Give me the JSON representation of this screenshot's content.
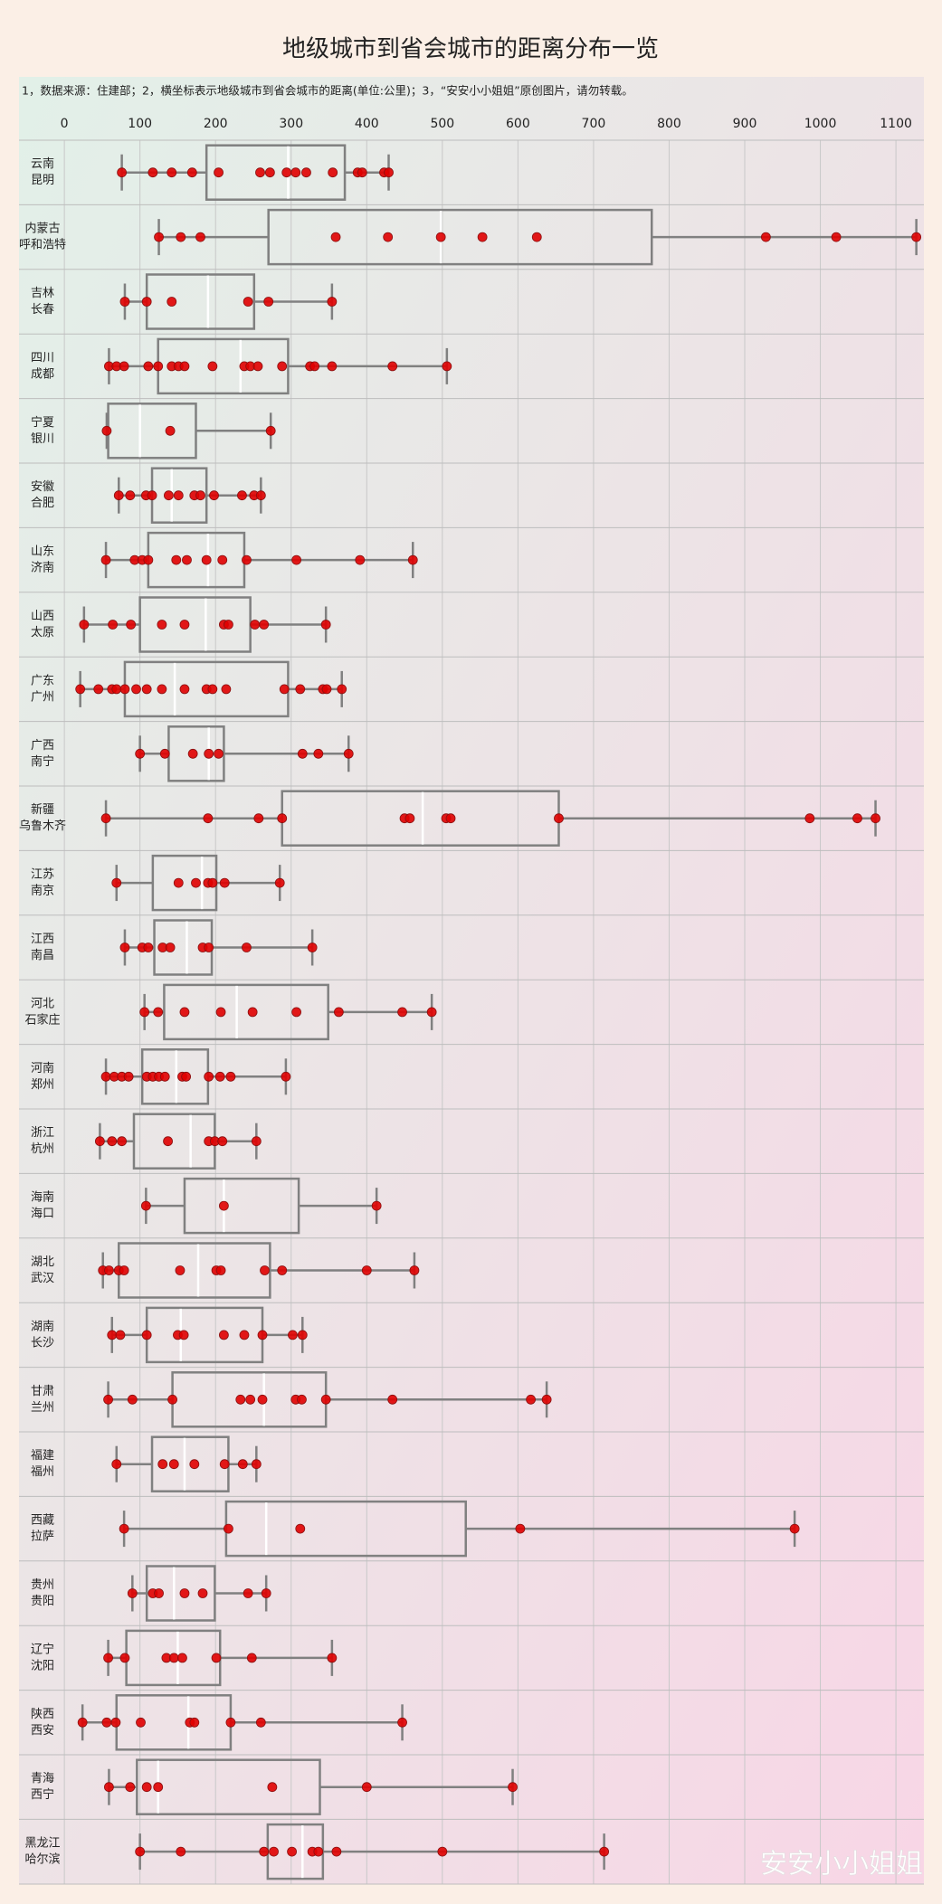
{
  "chart_data": {
    "type": "box",
    "title": "地级城市到省会城市的距离分布一览",
    "subtitle": "1，数据来源：住建部；2，横坐标表示地级城市到省会城市的距离(单位:公里)；3，“安安小小姐姐”原创图片，请勿转载。",
    "watermark": "安安小小姐姐",
    "xlim": [
      -60,
      1137
    ],
    "xticks": [
      0,
      100,
      200,
      300,
      400,
      500,
      600,
      700,
      800,
      900,
      1000,
      1100
    ],
    "grid": true,
    "box_color": "#808080",
    "median_color": "#ffffff",
    "point_color": "#e00000",
    "categories": [
      [
        "云南",
        "昆明"
      ],
      [
        "内蒙古",
        "呼和浩特"
      ],
      [
        "吉林",
        "长春"
      ],
      [
        "四川",
        "成都"
      ],
      [
        "宁夏",
        "银川"
      ],
      [
        "安徽",
        "合肥"
      ],
      [
        "山东",
        "济南"
      ],
      [
        "山西",
        "太原"
      ],
      [
        "广东",
        "广州"
      ],
      [
        "广西",
        "南宁"
      ],
      [
        "新疆",
        "乌鲁木齐"
      ],
      [
        "江苏",
        "南京"
      ],
      [
        "江西",
        "南昌"
      ],
      [
        "河北",
        "石家庄"
      ],
      [
        "河南",
        "郑州"
      ],
      [
        "浙江",
        "杭州"
      ],
      [
        "海南",
        "海口"
      ],
      [
        "湖北",
        "武汉"
      ],
      [
        "湖南",
        "长沙"
      ],
      [
        "甘肃",
        "兰州"
      ],
      [
        "福建",
        "福州"
      ],
      [
        "西藏",
        "拉萨"
      ],
      [
        "贵州",
        "贵阳"
      ],
      [
        "辽宁",
        "沈阳"
      ],
      [
        "陕西",
        "西安"
      ],
      [
        "青海",
        "西宁"
      ],
      [
        "黑龙江",
        "哈尔滨"
      ]
    ],
    "stats": [
      {
        "min": 76,
        "q1": 188,
        "median": 296,
        "q3": 371,
        "max": 429
      },
      {
        "min": 125,
        "q1": 270,
        "median": 498,
        "q3": 777,
        "max": 1127
      },
      {
        "min": 80,
        "q1": 109,
        "median": 190,
        "q3": 251,
        "max": 354
      },
      {
        "min": 59,
        "q1": 124,
        "median": 233,
        "q3": 296,
        "max": 506
      },
      {
        "min": 56,
        "q1": 58,
        "median": 100,
        "q3": 174,
        "max": 273
      },
      {
        "min": 72,
        "q1": 116,
        "median": 142,
        "q3": 188,
        "max": 260
      },
      {
        "min": 55,
        "q1": 111,
        "median": 190,
        "q3": 238,
        "max": 461
      },
      {
        "min": 26,
        "q1": 100,
        "median": 187,
        "q3": 246,
        "max": 346
      },
      {
        "min": 21,
        "q1": 80,
        "median": 146,
        "q3": 296,
        "max": 367
      },
      {
        "min": 100,
        "q1": 138,
        "median": 191,
        "q3": 211,
        "max": 376
      },
      {
        "min": 55,
        "q1": 288,
        "median": 474,
        "q3": 654,
        "max": 1073
      },
      {
        "min": 69,
        "q1": 117,
        "median": 182,
        "q3": 201,
        "max": 285
      },
      {
        "min": 80,
        "q1": 119,
        "median": 162,
        "q3": 195,
        "max": 328
      },
      {
        "min": 106,
        "q1": 132,
        "median": 228,
        "q3": 349,
        "max": 486
      },
      {
        "min": 55,
        "q1": 103,
        "median": 148,
        "q3": 190,
        "max": 293
      },
      {
        "min": 47,
        "q1": 92,
        "median": 167,
        "q3": 199,
        "max": 254
      },
      {
        "min": 108,
        "q1": 159,
        "median": 211,
        "q3": 310,
        "max": 413
      },
      {
        "min": 51,
        "q1": 72,
        "median": 177,
        "q3": 272,
        "max": 463
      },
      {
        "min": 63,
        "q1": 109,
        "median": 154,
        "q3": 262,
        "max": 315
      },
      {
        "min": 58,
        "q1": 143,
        "median": 264,
        "q3": 346,
        "max": 638
      },
      {
        "min": 69,
        "q1": 116,
        "median": 159,
        "q3": 217,
        "max": 254
      },
      {
        "min": 79,
        "q1": 214,
        "median": 267,
        "q3": 531,
        "max": 966
      },
      {
        "min": 90,
        "q1": 109,
        "median": 145,
        "q3": 199,
        "max": 267
      },
      {
        "min": 58,
        "q1": 82,
        "median": 150,
        "q3": 206,
        "max": 354
      },
      {
        "min": 24,
        "q1": 69,
        "median": 164,
        "q3": 220,
        "max": 447
      },
      {
        "min": 59,
        "q1": 96,
        "median": 124,
        "q3": 338,
        "max": 593
      },
      {
        "min": 100,
        "q1": 269,
        "median": 315,
        "q3": 342,
        "max": 714
      }
    ],
    "points": [
      [
        76,
        117,
        142,
        169,
        204,
        259,
        272,
        294,
        306,
        320,
        355,
        388,
        394,
        423,
        429
      ],
      [
        125,
        154,
        180,
        359,
        428,
        498,
        553,
        625,
        928,
        1021,
        1127
      ],
      [
        80,
        109,
        142,
        243,
        270,
        354
      ],
      [
        59,
        69,
        79,
        111,
        124,
        142,
        151,
        159,
        196,
        238,
        246,
        256,
        288,
        325,
        331,
        354,
        434,
        506
      ],
      [
        56,
        140,
        273
      ],
      [
        72,
        87,
        108,
        116,
        138,
        151,
        172,
        180,
        198,
        235,
        251,
        260
      ],
      [
        55,
        93,
        103,
        111,
        148,
        162,
        188,
        209,
        241,
        307,
        391,
        461
      ],
      [
        26,
        64,
        88,
        129,
        159,
        211,
        217,
        252,
        264,
        346
      ],
      [
        21,
        45,
        63,
        69,
        80,
        95,
        109,
        129,
        159,
        188,
        196,
        214,
        291,
        312,
        342,
        347,
        367
      ],
      [
        100,
        133,
        170,
        191,
        204,
        315,
        336,
        376
      ],
      [
        55,
        190,
        257,
        288,
        450,
        457,
        505,
        511,
        654,
        986,
        1049,
        1073
      ],
      [
        69,
        151,
        174,
        190,
        196,
        212,
        285
      ],
      [
        80,
        103,
        111,
        130,
        140,
        183,
        191,
        241,
        328
      ],
      [
        106,
        124,
        159,
        207,
        249,
        307,
        363,
        447,
        486
      ],
      [
        55,
        66,
        76,
        85,
        109,
        117,
        125,
        133,
        156,
        161,
        191,
        206,
        220,
        293
      ],
      [
        47,
        63,
        76,
        137,
        191,
        199,
        209,
        254
      ],
      [
        108,
        211,
        413
      ],
      [
        51,
        59,
        72,
        79,
        153,
        201,
        207,
        265,
        288,
        400,
        463
      ],
      [
        63,
        74,
        109,
        150,
        158,
        211,
        238,
        262,
        302,
        315
      ],
      [
        58,
        90,
        143,
        233,
        246,
        262,
        306,
        314,
        346,
        434,
        617,
        638
      ],
      [
        69,
        130,
        145,
        172,
        212,
        236,
        254
      ],
      [
        79,
        217,
        312,
        603,
        966
      ],
      [
        90,
        117,
        125,
        159,
        183,
        243,
        267
      ],
      [
        58,
        80,
        135,
        145,
        156,
        201,
        248,
        354
      ],
      [
        24,
        56,
        68,
        101,
        166,
        172,
        220,
        260,
        447
      ],
      [
        59,
        87,
        109,
        124,
        275,
        400,
        593
      ],
      [
        100,
        154,
        264,
        277,
        301,
        328,
        336,
        360,
        500,
        714
      ]
    ]
  }
}
